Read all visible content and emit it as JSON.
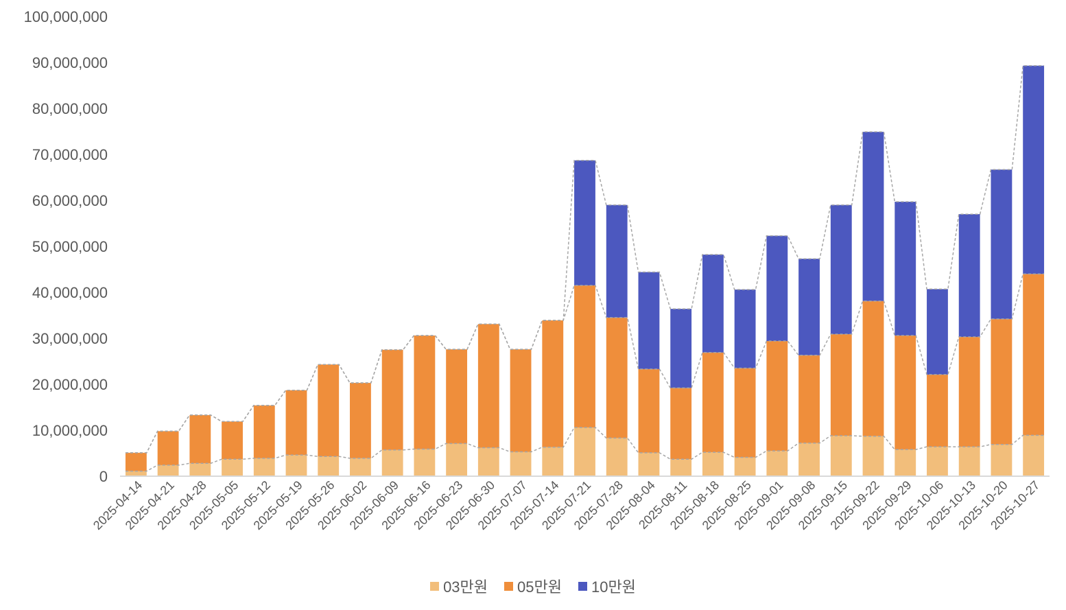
{
  "chart_data": {
    "type": "bar",
    "stacked": true,
    "title": "",
    "xlabel": "",
    "ylabel": "",
    "ylim": [
      0,
      100000000
    ],
    "yticks": [
      "0",
      "10,000,000",
      "20,000,000",
      "30,000,000",
      "40,000,000",
      "50,000,000",
      "60,000,000",
      "70,000,000",
      "80,000,000",
      "90,000,000",
      "100,000,000"
    ],
    "ytick_values": [
      0,
      10000000,
      20000000,
      30000000,
      40000000,
      50000000,
      60000000,
      70000000,
      80000000,
      90000000,
      100000000
    ],
    "grid": false,
    "legend_position": "bottom",
    "series_lines": "dashed gray lines connecting stacked series tops",
    "categories": [
      "2025-04-14",
      "2025-04-21",
      "2025-04-28",
      "2025-05-05",
      "2025-05-12",
      "2025-05-19",
      "2025-05-26",
      "2025-06-02",
      "2025-06-09",
      "2025-06-16",
      "2025-06-23",
      "2025-06-30",
      "2025-07-07",
      "2025-07-14",
      "2025-07-21",
      "2025-07-28",
      "2025-08-04",
      "2025-08-11",
      "2025-08-18",
      "2025-08-25",
      "2025-09-01",
      "2025-09-08",
      "2025-09-15",
      "2025-09-22",
      "2025-09-29",
      "2025-10-06",
      "2025-10-13",
      "2025-10-20",
      "2025-10-27"
    ],
    "series": [
      {
        "name": "03만원",
        "color": "#F2BE7B",
        "values": [
          1100000,
          2400000,
          2800000,
          3700000,
          3900000,
          4600000,
          4300000,
          3900000,
          5700000,
          5900000,
          7100000,
          6200000,
          5300000,
          6300000,
          10600000,
          8300000,
          5100000,
          3700000,
          5200000,
          4100000,
          5500000,
          7200000,
          8800000,
          8700000,
          5800000,
          6400000,
          6400000,
          6900000,
          8900000
        ]
      },
      {
        "name": "05만원",
        "color": "#EF8E3B",
        "values": [
          4000000,
          7400000,
          10500000,
          8200000,
          11500000,
          14100000,
          20000000,
          16400000,
          21800000,
          24700000,
          20500000,
          26900000,
          22300000,
          27600000,
          30900000,
          26200000,
          18200000,
          15500000,
          21700000,
          19400000,
          23900000,
          19100000,
          22100000,
          29400000,
          24800000,
          15700000,
          23900000,
          27300000,
          35100000
        ]
      },
      {
        "name": "10만원",
        "color": "#4C58BF",
        "values": [
          0,
          0,
          0,
          0,
          0,
          0,
          0,
          0,
          0,
          0,
          0,
          0,
          0,
          0,
          27200000,
          24500000,
          21100000,
          17200000,
          21300000,
          17100000,
          22900000,
          21000000,
          28100000,
          36800000,
          29100000,
          18600000,
          26700000,
          32500000,
          45300000
        ]
      }
    ]
  }
}
